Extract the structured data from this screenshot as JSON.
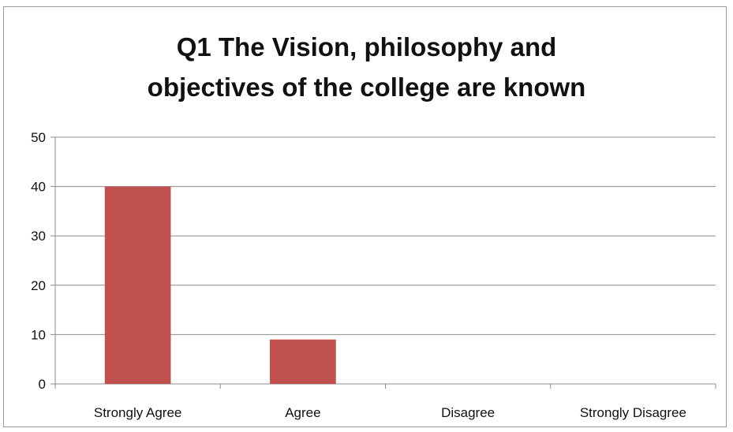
{
  "chart_data": {
    "type": "bar",
    "title_lines": [
      "Q1 The Vision, philosophy and",
      "objectives of the college are known"
    ],
    "categories": [
      "Strongly Agree",
      "Agree",
      "Disagree",
      "Strongly Disagree"
    ],
    "values": [
      40,
      9,
      0,
      0
    ],
    "ylim": [
      0,
      50
    ],
    "yticks": [
      "0",
      "10",
      "20",
      "30",
      "40",
      "50"
    ],
    "grid": true,
    "legend": "none",
    "bar_color": "#c0504d"
  }
}
